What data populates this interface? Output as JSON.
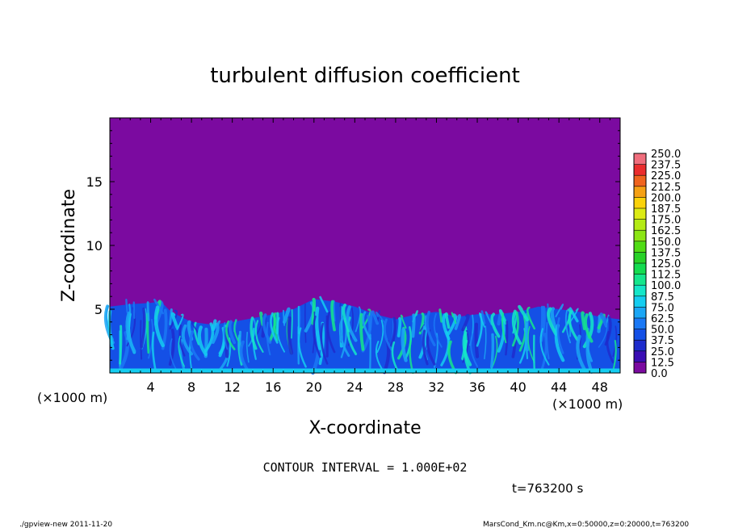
{
  "chart_data": {
    "type": "heatmap",
    "title": "turbulent diffusion coefficient",
    "xlabel": "X-coordinate",
    "ylabel": "Z-coordinate",
    "x_unit_left": "(×1000 m)",
    "x_unit_right": "(×1000 m)",
    "xlim": [
      0,
      50
    ],
    "ylim": [
      0,
      20
    ],
    "x_ticks": [
      4,
      8,
      12,
      16,
      20,
      24,
      28,
      32,
      36,
      40,
      44,
      48
    ],
    "y_ticks": [
      5,
      10,
      15
    ],
    "background_value": 0.0,
    "turbulent_layer_top_approx": [
      [
        0,
        5.2
      ],
      [
        2,
        5.4
      ],
      [
        4,
        5.5
      ],
      [
        5,
        5.6
      ],
      [
        6,
        4.8
      ],
      [
        8,
        4.0
      ],
      [
        10,
        3.8
      ],
      [
        12,
        4.0
      ],
      [
        14,
        4.3
      ],
      [
        16,
        4.6
      ],
      [
        18,
        5.0
      ],
      [
        20,
        5.8
      ],
      [
        22,
        5.6
      ],
      [
        24,
        5.2
      ],
      [
        26,
        4.6
      ],
      [
        28,
        4.2
      ],
      [
        30,
        4.6
      ],
      [
        32,
        4.8
      ],
      [
        34,
        4.4
      ],
      [
        36,
        4.6
      ],
      [
        38,
        4.6
      ],
      [
        40,
        4.8
      ],
      [
        42,
        5.2
      ],
      [
        44,
        5.0
      ],
      [
        46,
        4.8
      ],
      [
        48,
        4.4
      ],
      [
        50,
        4.2
      ]
    ],
    "contour_interval": "CONTOUR INTERVAL = 1.000E+02",
    "time": "t=763200 s",
    "colorbar": {
      "levels": [
        "0.0",
        "12.5",
        "25.0",
        "37.5",
        "50.0",
        "62.5",
        "75.0",
        "87.5",
        "100.0",
        "112.5",
        "125.0",
        "137.5",
        "150.0",
        "162.5",
        "175.0",
        "187.5",
        "200.0",
        "212.5",
        "225.0",
        "237.5",
        "250.0"
      ],
      "colors": [
        "#7b0aa0",
        "#3a0eb4",
        "#1e2ccc",
        "#1450e6",
        "#1a78f5",
        "#1aa6f5",
        "#14cdf0",
        "#14e6c8",
        "#14e68c",
        "#14dc50",
        "#28d228",
        "#50dc14",
        "#8ce614",
        "#b4eb14",
        "#dceb14",
        "#fad20a",
        "#f5a014",
        "#f0641e",
        "#eb2d2d",
        "#f06e7d"
      ]
    }
  },
  "footer": {
    "left": "./gpview-new   2011-11-20",
    "right": "MarsCond_Km.nc@Km,x=0:50000,z=0:20000,t=763200"
  }
}
